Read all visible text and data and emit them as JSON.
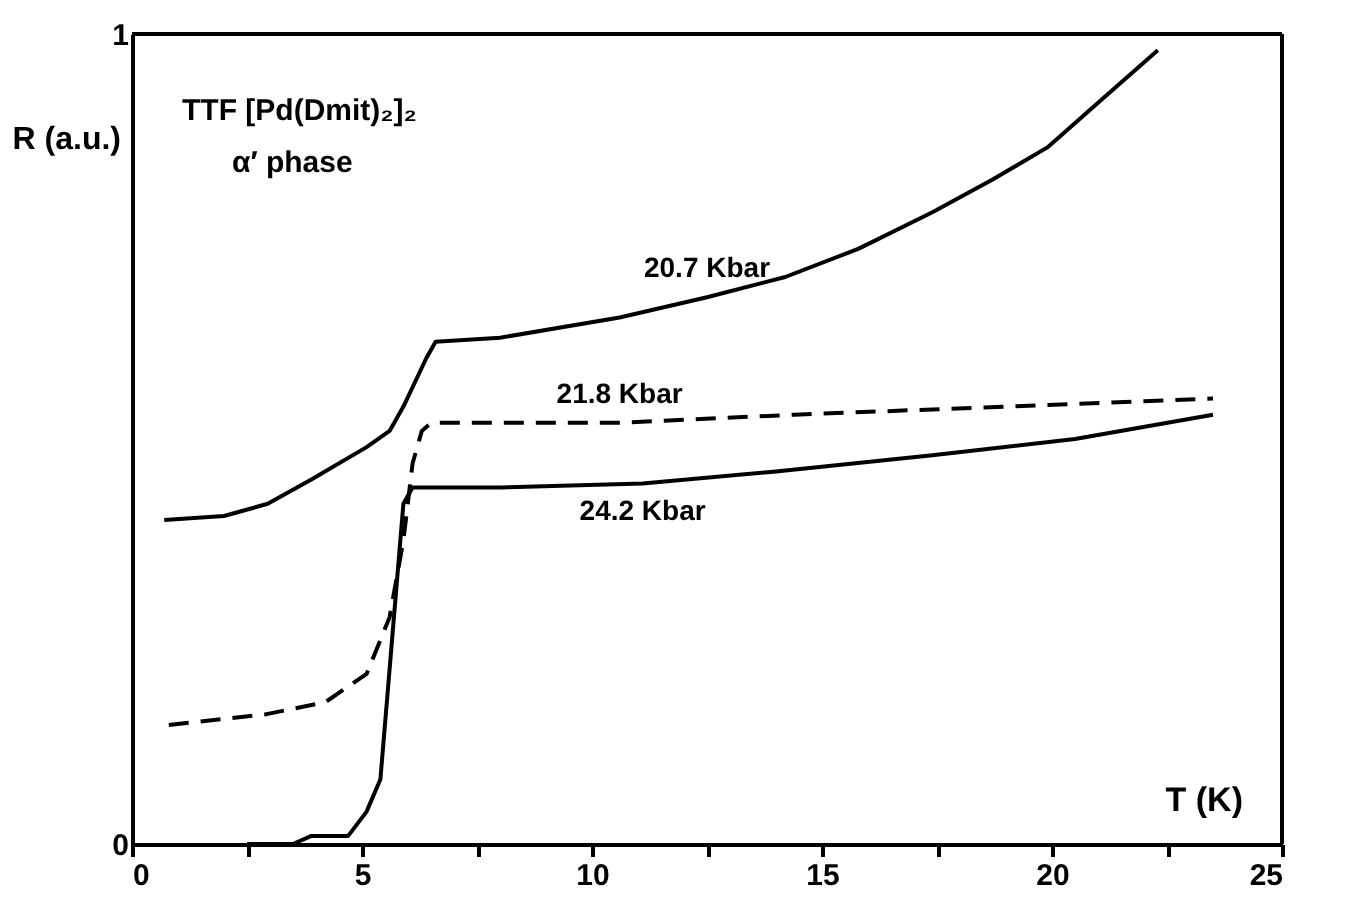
{
  "chart_data": {
    "type": "line",
    "xlabel": "T (K)",
    "ylabel": "R (a.u.)",
    "annotations": [
      "TTF [Pd(Dmit)₂]₂",
      "α′ phase"
    ],
    "xlim": [
      0,
      25
    ],
    "ylim": [
      0,
      1
    ],
    "xticks": [
      0,
      {
        "value": 2.5,
        "label": null
      },
      5,
      {
        "value": 7.5,
        "label": null
      },
      10,
      {
        "value": 12.5,
        "label": null
      },
      15,
      {
        "value": 17.5,
        "label": null
      },
      20,
      {
        "value": 22.5,
        "label": null
      },
      25
    ],
    "yticks": [
      0,
      1
    ],
    "grid": false,
    "marker": "none",
    "series": [
      {
        "name": "20.7 Kbar",
        "color": "#000000",
        "line_style": "solid",
        "x": [
          0.7,
          2.0,
          2.95,
          3.9,
          5.1,
          5.6,
          5.9,
          6.4,
          6.6,
          8.0,
          10.6,
          12.5,
          14.2,
          15.8,
          17.4,
          18.7,
          19.9,
          21.1,
          22.3
        ],
        "values": [
          0.4,
          0.405,
          0.42,
          0.45,
          0.49,
          0.51,
          0.54,
          0.6,
          0.62,
          0.625,
          0.65,
          0.675,
          0.7,
          0.735,
          0.78,
          0.82,
          0.86,
          0.92,
          0.98
        ]
      },
      {
        "name": "21.8 Kbar",
        "color": "#000000",
        "line_style": "dashed",
        "x": [
          0.8,
          2.9,
          4.2,
          5.1,
          5.6,
          5.9,
          6.1,
          6.3,
          6.5,
          10.6,
          14.4,
          19.0,
          23.5
        ],
        "values": [
          0.147,
          0.16,
          0.175,
          0.21,
          0.28,
          0.375,
          0.47,
          0.51,
          0.52,
          0.52,
          0.53,
          0.54,
          0.55
        ]
      },
      {
        "name": "24.2 Kbar",
        "color": "#000000",
        "line_style": "solid",
        "x": [
          2.5,
          3.5,
          3.9,
          4.7,
          5.1,
          5.4,
          5.65,
          5.9,
          6.1,
          8.0,
          11.1,
          14.0,
          17.4,
          20.5,
          23.5
        ],
        "values": [
          0.0,
          0.0,
          0.01,
          0.01,
          0.04,
          0.08,
          0.25,
          0.42,
          0.44,
          0.44,
          0.445,
          0.46,
          0.48,
          0.5,
          0.53
        ]
      }
    ]
  }
}
